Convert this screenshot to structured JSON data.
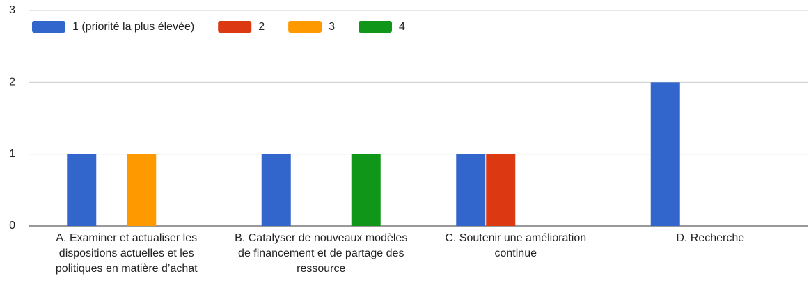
{
  "chart_data": {
    "type": "bar",
    "categories": [
      "A. Examiner et actualiser les dispositions actuelles et les politiques en matière d’achat",
      "B. Catalyser de nouveaux modèles de financement et de partage des ressource",
      "C. Soutenir une amélioration continue",
      "D. Recherche"
    ],
    "series": [
      {
        "name": "1 (priorité la plus élevée)",
        "color": "#3366cc",
        "values": [
          1,
          1,
          1,
          2
        ]
      },
      {
        "name": "2",
        "color": "#dc3912",
        "values": [
          0,
          0,
          1,
          0
        ]
      },
      {
        "name": "3",
        "color": "#ff9900",
        "values": [
          1,
          0,
          0,
          0
        ]
      },
      {
        "name": "4",
        "color": "#109618",
        "values": [
          0,
          1,
          0,
          0
        ]
      }
    ],
    "ylim": [
      0,
      3
    ],
    "yticks": [
      0,
      1,
      2,
      3
    ],
    "grid": true,
    "legend": "top"
  }
}
